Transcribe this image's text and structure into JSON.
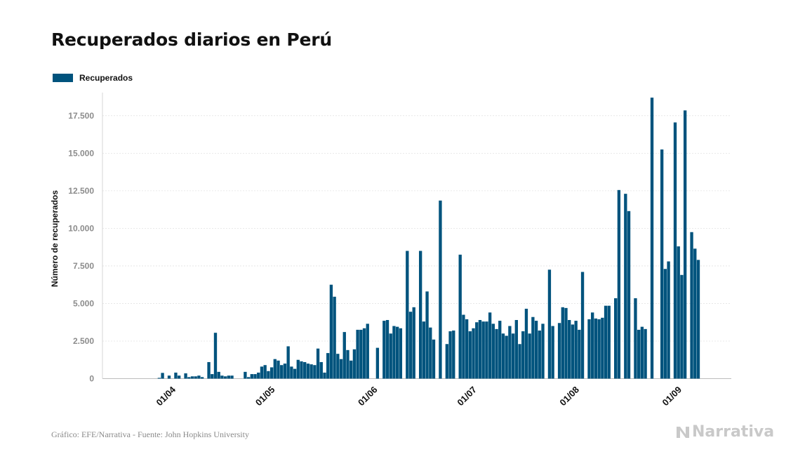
{
  "title": "Recuperados diarios en Perú",
  "legend": {
    "label": "Recuperados",
    "color": "#00537d"
  },
  "footer": "Gráfico: EFE/Narrativa - Fuente: John Hopkins University",
  "brand": "Narrativa",
  "chart_data": {
    "type": "bar",
    "title": "Recuperados diarios en Perú",
    "ylabel": "Número de recuperados",
    "xlabel": "",
    "ylim": [
      0,
      19500
    ],
    "yticks": [
      0,
      2500,
      5000,
      7500,
      10000,
      12500,
      15000,
      17500
    ],
    "ytick_labels": [
      "0",
      "2.500",
      "5.000",
      "7.500",
      "10.000",
      "12.500",
      "15.000",
      "17.500"
    ],
    "xtick_labels": [
      "01/04",
      "01/05",
      "01/06",
      "01/07",
      "01/08",
      "01/09"
    ],
    "xtick_dates": [
      "2020-04-01",
      "2020-05-01",
      "2020-06-01",
      "2020-07-01",
      "2020-08-01",
      "2020-09-01"
    ],
    "grid": true,
    "legend_position": "top-left",
    "color": "#00537d",
    "series": [
      {
        "name": "Recuperados",
        "start_date": "2020-03-06",
        "end_date": "2020-09-10",
        "values": [
          0,
          0,
          0,
          0,
          0,
          0,
          0,
          0,
          0,
          0,
          0,
          0,
          0,
          0,
          0,
          0,
          0,
          0,
          0,
          0,
          0,
          0,
          0,
          50,
          380,
          0,
          200,
          0,
          400,
          200,
          0,
          350,
          100,
          150,
          150,
          200,
          100,
          0,
          1100,
          300,
          3050,
          450,
          200,
          150,
          200,
          200,
          0,
          0,
          0,
          450,
          100,
          300,
          300,
          400,
          800,
          900,
          500,
          750,
          1300,
          1200,
          900,
          1000,
          2150,
          800,
          650,
          1250,
          1150,
          1100,
          1000,
          950,
          900,
          2000,
          1100,
          400,
          1700,
          6250,
          5450,
          1650,
          1300,
          3100,
          1900,
          1200,
          1950,
          3250,
          3250,
          3350,
          3650,
          0,
          0,
          2050,
          0,
          3850,
          3900,
          3000,
          3500,
          3450,
          3350,
          0,
          8500,
          4450,
          4750,
          0,
          8500,
          3800,
          5800,
          3400,
          2600,
          0,
          11850,
          0,
          2300,
          3150,
          3200,
          0,
          8250,
          4250,
          3950,
          3150,
          3350,
          3750,
          3900,
          3800,
          3800,
          4400,
          3650,
          3300,
          3850,
          3000,
          2850,
          3500,
          3000,
          3900,
          2300,
          3150,
          4650,
          3000,
          4100,
          3850,
          3200,
          3650,
          0,
          7250,
          3500,
          0,
          3700,
          4750,
          4700,
          3900,
          3600,
          3850,
          3250,
          7100,
          0,
          3950,
          4400,
          4000,
          3950,
          4050,
          4850,
          4850,
          0,
          5350,
          12550,
          0,
          12300,
          11150,
          0,
          5350,
          3250,
          3450,
          3300,
          0,
          18700,
          0,
          0,
          15250,
          7300,
          7800,
          0,
          17050,
          8800,
          6900,
          17850,
          0,
          9750,
          8650,
          7900
        ]
      }
    ]
  }
}
